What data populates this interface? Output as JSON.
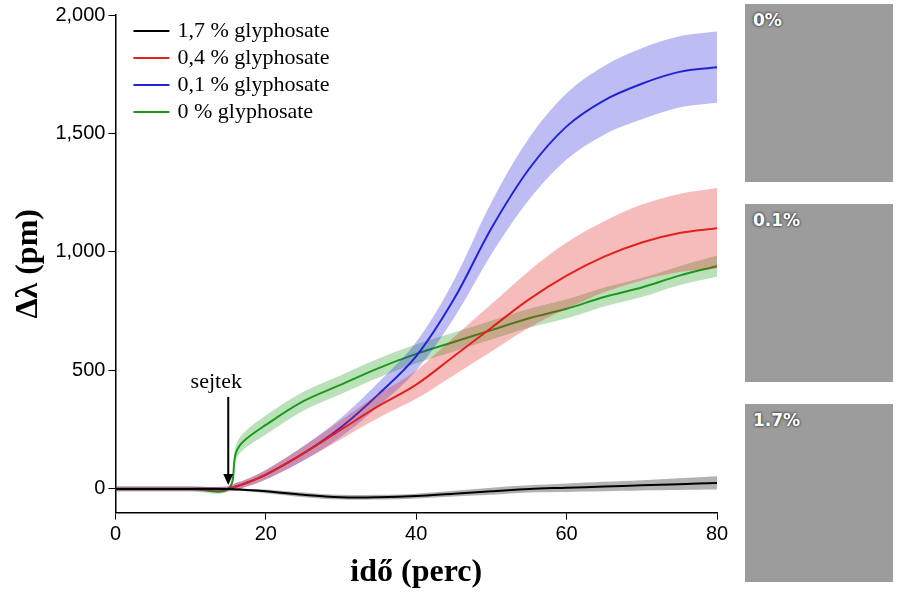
{
  "chart_data": {
    "type": "line",
    "x_label": "idő (perc)",
    "y_label": "Δλ (pm)",
    "x": [
      0,
      5,
      10,
      15,
      16,
      17,
      20,
      25,
      30,
      35,
      40,
      45,
      50,
      55,
      60,
      65,
      70,
      75,
      80
    ],
    "series": [
      {
        "name": "1,7 % glyphosate",
        "color": "#000000",
        "values": [
          0,
          0,
          0,
          0,
          -2,
          -4,
          -10,
          -25,
          -35,
          -35,
          -30,
          -20,
          -10,
          0,
          5,
          10,
          15,
          20,
          25
        ],
        "error": [
          5,
          5,
          5,
          5,
          5,
          5,
          8,
          10,
          10,
          10,
          10,
          12,
          15,
          15,
          18,
          20,
          22,
          25,
          28
        ]
      },
      {
        "name": "0,4 % glyphosate",
        "color": "#e0211d",
        "values": [
          0,
          0,
          0,
          0,
          10,
          20,
          60,
          150,
          250,
          350,
          440,
          560,
          680,
          800,
          900,
          980,
          1040,
          1080,
          1100
        ],
        "error": [
          10,
          10,
          10,
          10,
          15,
          15,
          20,
          30,
          40,
          50,
          60,
          80,
          100,
          120,
          140,
          150,
          160,
          165,
          170
        ]
      },
      {
        "name": "0,1 % glyphosate",
        "color": "#2323d6",
        "values": [
          0,
          0,
          0,
          0,
          10,
          20,
          60,
          150,
          260,
          400,
          560,
          800,
          1100,
          1350,
          1530,
          1640,
          1710,
          1760,
          1780
        ],
        "error": [
          10,
          10,
          10,
          10,
          15,
          15,
          20,
          30,
          40,
          50,
          60,
          80,
          110,
          130,
          140,
          145,
          150,
          150,
          150
        ]
      },
      {
        "name": "0 % glyphosate",
        "color": "#1a9a1a",
        "values": [
          0,
          0,
          0,
          0,
          150,
          200,
          270,
          370,
          440,
          510,
          570,
          620,
          670,
          720,
          760,
          810,
          850,
          900,
          940
        ],
        "error": [
          10,
          10,
          10,
          10,
          30,
          35,
          40,
          40,
          40,
          40,
          40,
          40,
          40,
          40,
          40,
          40,
          40,
          40,
          45
        ]
      }
    ],
    "xlim": [
      0,
      80
    ],
    "xticks": [
      0,
      20,
      40,
      60,
      80
    ],
    "ylim": [
      -100,
      2000
    ],
    "yticks": [
      0,
      500,
      1000,
      1500,
      2000
    ],
    "grid": false,
    "legend": "upper left",
    "annotations": [
      {
        "text": "sejtek",
        "x": 15,
        "y": 0
      }
    ],
    "image_labels": [
      "0%",
      "0.1%",
      "1.7%"
    ]
  }
}
